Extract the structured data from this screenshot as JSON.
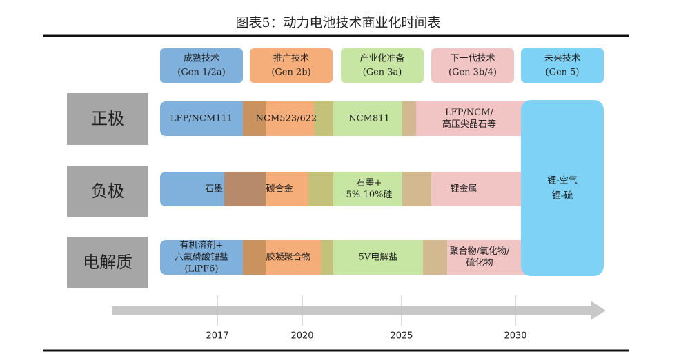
{
  "title": "图表5：动力电池技术商业化时间表",
  "stages": [
    {
      "name": "成熟技术",
      "gen": "(Gen 1/2a)"
    },
    {
      "name": "推广技术",
      "gen": "(Gen 2b)"
    },
    {
      "name": "产业化准备",
      "gen": "(Gen  3a)"
    },
    {
      "name": "下一代技术",
      "gen": "(Gen 3b/4)"
    },
    {
      "name": "未来技术",
      "gen": "(Gen 5)"
    }
  ],
  "rows": [
    {
      "label": "正极",
      "cells": [
        [
          "LFP/NCM111"
        ],
        [
          "NCM523/622"
        ],
        [
          "NCM811"
        ],
        [
          "LFP/NCM/",
          "高压尖晶石等"
        ]
      ]
    },
    {
      "label": "负极",
      "cells": [
        [
          "石墨"
        ],
        [
          "碳合金"
        ],
        [
          "石墨+",
          "5%-10%硅"
        ],
        [
          "锂金属"
        ]
      ]
    },
    {
      "label": "电解质",
      "cells": [
        [
          "有机溶剂+",
          "六氟磷酸锂盐",
          "(LiPF6)"
        ],
        [
          "胶凝聚合物"
        ],
        [
          "5V电解盐"
        ],
        [
          "聚合物/氧化物/",
          "硫化物"
        ]
      ]
    }
  ],
  "future_tech": [
    "锂-空气",
    "锂-硫"
  ],
  "timeline": [
    "2017",
    "2020",
    "2025",
    "2030"
  ]
}
